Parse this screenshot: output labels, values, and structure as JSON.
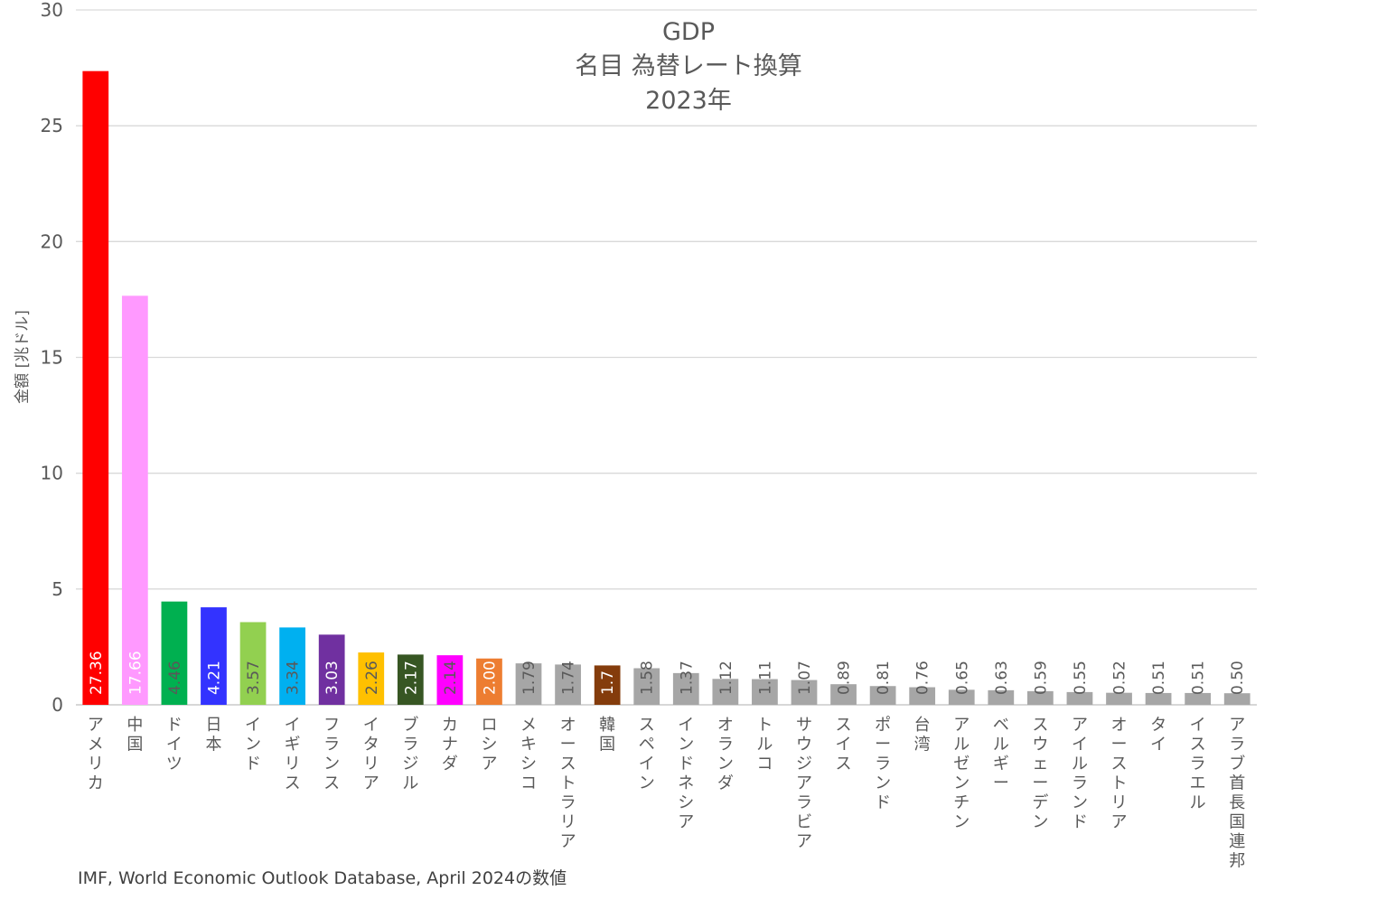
{
  "chart_data": {
    "type": "bar",
    "title": [
      "GDP",
      "名目 為替レート換算",
      "2023年"
    ],
    "ylabel": "金額 [兆ドル]",
    "xlabel": "",
    "ylim": [
      0,
      30
    ],
    "yticks": [
      0,
      5,
      10,
      15,
      20,
      25,
      30
    ],
    "grid": true,
    "categories": [
      "アメリカ",
      "中国",
      "ドイツ",
      "日本",
      "インド",
      "イギリス",
      "フランス",
      "イタリア",
      "ブラジル",
      "カナダ",
      "ロシア",
      "メキシコ",
      "オーストラリア",
      "韓国",
      "スペイン",
      "インドネシア",
      "オランダ",
      "トルコ",
      "サウジアラビア",
      "スイス",
      "ポーランド",
      "台湾",
      "アルゼンチン",
      "ベルギー",
      "スウェーデン",
      "アイルランド",
      "オーストリア",
      "タイ",
      "イスラエル",
      "アラブ首長国連邦"
    ],
    "values": [
      27.36,
      17.66,
      4.46,
      4.21,
      3.57,
      3.34,
      3.03,
      2.26,
      2.17,
      2.14,
      2.0,
      1.79,
      1.74,
      1.7,
      1.58,
      1.37,
      1.12,
      1.11,
      1.07,
      0.89,
      0.81,
      0.76,
      0.65,
      0.63,
      0.59,
      0.55,
      0.52,
      0.51,
      0.51,
      0.5
    ],
    "labels": [
      "27.36",
      "17.66",
      "4.46",
      "4.21",
      "3.57",
      "3.34",
      "3.03",
      "2.26",
      "2.17",
      "2.14",
      "2.00",
      "1.79",
      "1.74",
      "1.7",
      "1.58",
      "1.37",
      "1.12",
      "1.11",
      "1.07",
      "0.89",
      "0.81",
      "0.76",
      "0.65",
      "0.63",
      "0.59",
      "0.55",
      "0.52",
      "0.51",
      "0.51",
      "0.50"
    ],
    "colors": [
      "#ff0000",
      "#ff99ff",
      "#00b050",
      "#3333ff",
      "#92d050",
      "#00b0f0",
      "#7030a0",
      "#ffc000",
      "#375623",
      "#ff00ff",
      "#ed7d31",
      "#a6a6a6",
      "#a6a6a6",
      "#843c0c",
      "#a6a6a6",
      "#a6a6a6",
      "#a6a6a6",
      "#a6a6a6",
      "#a6a6a6",
      "#a6a6a6",
      "#a6a6a6",
      "#a6a6a6",
      "#a6a6a6",
      "#a6a6a6",
      "#a6a6a6",
      "#a6a6a6",
      "#a6a6a6",
      "#a6a6a6",
      "#a6a6a6",
      "#a6a6a6"
    ],
    "label_colors": [
      "#ffffff",
      "#ffffff",
      "#595959",
      "#ffffff",
      "#595959",
      "#595959",
      "#ffffff",
      "#595959",
      "#ffffff",
      "#595959",
      "#ffffff",
      "#595959",
      "#595959",
      "#ffffff",
      "#595959",
      "#595959",
      "#595959",
      "#595959",
      "#595959",
      "#595959",
      "#595959",
      "#595959",
      "#595959",
      "#595959",
      "#595959",
      "#595959",
      "#595959",
      "#595959",
      "#595959",
      "#595959"
    ]
  },
  "source": "IMF, World Economic Outlook Database, April 2024の数値"
}
